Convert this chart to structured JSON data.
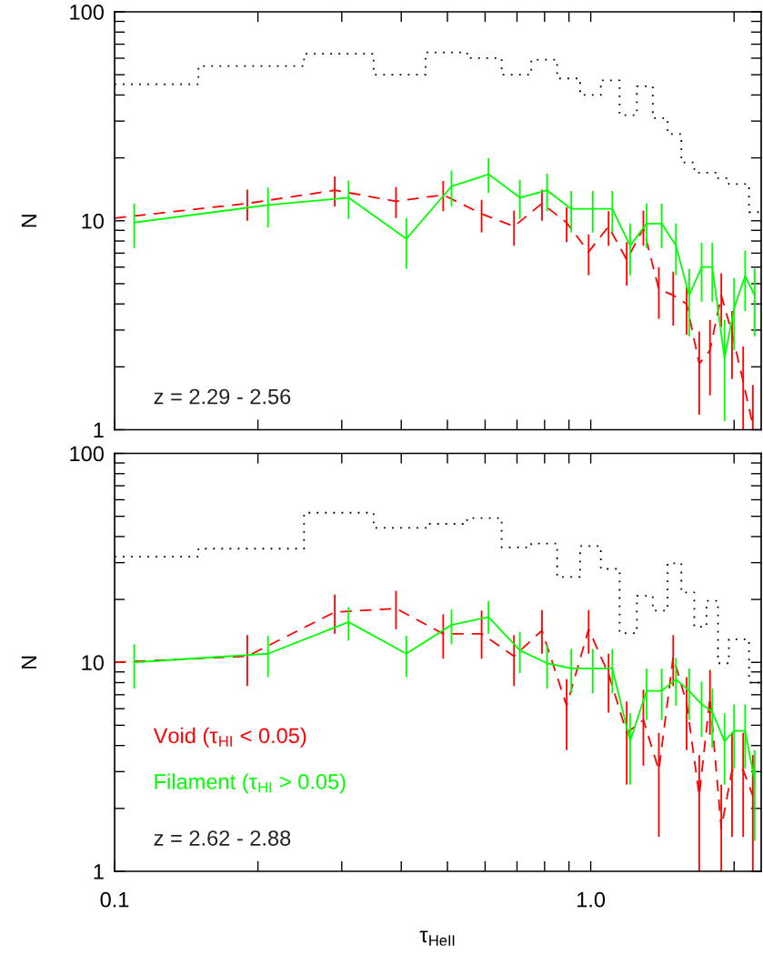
{
  "chart_data": [
    {
      "type": "line",
      "ylabel": "N",
      "log": "xy",
      "tick_labels": "y",
      "xlim": [
        0.1,
        2.28
      ],
      "ylim": [
        1,
        100
      ],
      "xticks": [
        {
          "value": 0.1,
          "label": null
        },
        {
          "value": 0.2,
          "label": null
        },
        {
          "value": 0.3,
          "label": null
        },
        {
          "value": 0.4,
          "label": null
        },
        {
          "value": 0.5,
          "label": null
        },
        {
          "value": 0.6,
          "label": null
        },
        {
          "value": 0.7,
          "label": null
        },
        {
          "value": 0.8,
          "label": null
        },
        {
          "value": 0.9,
          "label": null
        },
        {
          "value": 1,
          "label": null
        },
        {
          "value": 2,
          "label": null
        }
      ],
      "yticks": [
        1,
        {
          "value": 2,
          "label": null
        },
        {
          "value": 3,
          "label": null
        },
        {
          "value": 4,
          "label": null
        },
        {
          "value": 5,
          "label": null
        },
        {
          "value": 6,
          "label": null
        },
        {
          "value": 7,
          "label": null
        },
        {
          "value": 8,
          "label": null
        },
        {
          "value": 9,
          "label": null
        },
        10,
        {
          "value": 20,
          "label": null
        },
        {
          "value": 30,
          "label": null
        },
        {
          "value": 40,
          "label": null
        },
        {
          "value": 50,
          "label": null
        },
        {
          "value": 60,
          "label": null
        },
        {
          "value": 70,
          "label": null
        },
        {
          "value": 80,
          "label": null
        },
        {
          "value": 90,
          "label": null
        },
        100
      ],
      "annotations": [
        "z = 2.29 - 2.56"
      ],
      "series": [
        {
          "type": "step",
          "color": "#000000",
          "line_style": "dotted",
          "x": [
            0.1,
            0.15,
            0.25,
            0.35,
            0.45,
            0.55,
            0.65,
            0.75,
            0.85,
            0.95,
            1.05,
            1.15,
            1.25,
            1.35,
            1.45,
            1.55,
            1.65,
            1.75,
            1.85,
            1.95,
            2.05,
            2.15,
            2.28
          ],
          "values": [
            45,
            55,
            63,
            50,
            64,
            60,
            50,
            59,
            48,
            40,
            47,
            32,
            44,
            31,
            26,
            19,
            17,
            17,
            16,
            15,
            15,
            11,
            11
          ]
        },
        {
          "type": "line",
          "color": "#ff0000",
          "line_style": "dashed",
          "x": [
            0.1,
            0.19,
            0.29,
            0.39,
            0.49,
            0.59,
            0.69,
            0.79,
            0.89,
            0.99,
            1.09,
            1.19,
            1.29,
            1.39,
            1.49,
            1.59,
            1.69,
            1.78,
            1.88,
            1.98,
            2.09,
            2.19
          ],
          "values": [
            10.3,
            12.1,
            14.0,
            12.4,
            13.3,
            10.8,
            9.4,
            12.1,
            9.8,
            7.1,
            9.4,
            6.5,
            9.2,
            4.7,
            4.4,
            4.0,
            2.07,
            2.4,
            4.4,
            2.9,
            1.7,
            1.05
          ],
          "errors": [
            null,
            [
              10.0,
              14.1
            ],
            [
              11.7,
              16.3
            ],
            [
              10.3,
              14.5
            ],
            [
              11.1,
              15.5
            ],
            [
              8.8,
              12.6
            ],
            [
              7.6,
              11.2
            ],
            [
              10.0,
              14.1
            ],
            [
              7.9,
              11.6
            ],
            [
              5.5,
              8.6
            ],
            [
              7.6,
              11.1
            ],
            [
              4.9,
              7.9
            ],
            [
              7.6,
              11.2
            ],
            [
              3.4,
              6.0
            ],
            [
              3.15,
              5.7
            ],
            [
              2.85,
              4.8
            ],
            [
              1.18,
              2.95
            ],
            [
              1.46,
              3.35
            ],
            [
              3.1,
              5.6
            ],
            [
              1.75,
              3.7
            ],
            [
              1.0,
              2.5
            ],
            [
              1.0,
              1.64
            ]
          ]
        },
        {
          "type": "line",
          "color": "#00ff00",
          "line_style": "solid",
          "x": [
            0.11,
            0.21,
            0.31,
            0.41,
            0.51,
            0.61,
            0.71,
            0.81,
            0.91,
            1.01,
            1.11,
            1.21,
            1.31,
            1.41,
            1.51,
            1.61,
            1.71,
            1.8,
            1.91,
            2.0,
            2.11,
            2.21
          ],
          "values": [
            9.8,
            11.9,
            12.9,
            8.2,
            14.6,
            16.7,
            12.9,
            14.0,
            11.4,
            11.4,
            11.4,
            7.6,
            9.7,
            9.7,
            7.6,
            4.4,
            6.0,
            6.0,
            2.2,
            3.8,
            5.45,
            4.4
          ],
          "errors": [
            [
              7.4,
              12.1
            ],
            [
              9.3,
              14.4
            ],
            [
              10.2,
              15.6
            ],
            [
              5.9,
              10.3
            ],
            [
              11.7,
              17.4
            ],
            [
              13.6,
              19.9
            ],
            [
              10.2,
              15.7
            ],
            [
              11.1,
              16.8
            ],
            [
              8.8,
              13.9
            ],
            [
              8.8,
              13.9
            ],
            [
              8.8,
              13.9
            ],
            [
              5.5,
              9.7
            ],
            [
              7.4,
              12.1
            ],
            [
              7.4,
              12.1
            ],
            [
              5.5,
              9.7
            ],
            [
              2.8,
              5.9
            ],
            [
              4.1,
              7.85
            ],
            [
              4.1,
              7.85
            ],
            [
              1.1,
              3.35
            ],
            [
              2.4,
              5.3
            ],
            [
              3.7,
              7.2
            ],
            [
              2.8,
              5.9
            ]
          ]
        }
      ]
    },
    {
      "type": "line",
      "ylabel": "N",
      "xlabel": "τ$_{HeII}$",
      "log": "xy",
      "legend": "bottom left",
      "xlim": [
        0.1,
        2.28
      ],
      "ylim": [
        1,
        100
      ],
      "xticks": [
        {
          "value": 0.1,
          "label": "0.1"
        },
        {
          "value": 0.2,
          "label": null
        },
        {
          "value": 0.3,
          "label": null
        },
        {
          "value": 0.4,
          "label": null
        },
        {
          "value": 0.5,
          "label": null
        },
        {
          "value": 0.6,
          "label": null
        },
        {
          "value": 0.7,
          "label": null
        },
        {
          "value": 0.8,
          "label": null
        },
        {
          "value": 0.9,
          "label": null
        },
        {
          "value": 1,
          "label": "1.0"
        },
        {
          "value": 2,
          "label": null
        }
      ],
      "yticks": [
        1,
        {
          "value": 2,
          "label": null
        },
        {
          "value": 3,
          "label": null
        },
        {
          "value": 4,
          "label": null
        },
        {
          "value": 5,
          "label": null
        },
        {
          "value": 6,
          "label": null
        },
        {
          "value": 7,
          "label": null
        },
        {
          "value": 8,
          "label": null
        },
        {
          "value": 9,
          "label": null
        },
        10,
        {
          "value": 20,
          "label": null
        },
        {
          "value": 30,
          "label": null
        },
        {
          "value": 40,
          "label": null
        },
        {
          "value": 50,
          "label": null
        },
        {
          "value": 60,
          "label": null
        },
        {
          "value": 70,
          "label": null
        },
        {
          "value": 80,
          "label": null
        },
        {
          "value": 90,
          "label": null
        },
        100
      ],
      "annotations": [
        "z = 2.62 - 2.88"
      ],
      "series": [
        {
          "type": "step",
          "color": "#000000",
          "line_style": "dotted",
          "x": [
            0.1,
            0.15,
            0.25,
            0.35,
            0.45,
            0.55,
            0.65,
            0.75,
            0.85,
            0.95,
            1.05,
            1.15,
            1.25,
            1.35,
            1.45,
            1.55,
            1.65,
            1.75,
            1.85,
            1.95,
            2.05,
            2.15,
            2.28
          ],
          "values": [
            32,
            35,
            52,
            44,
            46,
            49,
            35.5,
            37,
            25.6,
            36,
            28,
            13.8,
            20.8,
            17.7,
            29.8,
            21.6,
            14.8,
            19.7,
            9.9,
            12.9,
            12.9,
            8.0,
            8.0
          ]
        },
        {
          "type": "line",
          "name": "Void (τ$_{HI}$ < 0.05)",
          "color": "#ff0000",
          "line_style": "dashed",
          "x": [
            0.1,
            0.19,
            0.29,
            0.39,
            0.49,
            0.59,
            0.69,
            0.79,
            0.89,
            0.99,
            1.09,
            1.19,
            1.29,
            1.39,
            1.49,
            1.59,
            1.69,
            1.78,
            1.88,
            1.98,
            2.09,
            2.19
          ],
          "values": [
            10.0,
            10.7,
            17.4,
            18.1,
            13.7,
            13.7,
            10.7,
            14.2,
            6.2,
            14.4,
            8.8,
            4.6,
            5.3,
            3.05,
            10.6,
            6.4,
            2.3,
            6.8,
            1.6,
            3.05,
            3.05,
            2.3
          ],
          "errors": [
            null,
            [
              7.7,
              13.5
            ],
            [
              13.7,
              21.1
            ],
            [
              14.4,
              22
            ],
            [
              10.4,
              17.0
            ],
            [
              10.4,
              17.7
            ],
            [
              7.7,
              13.5
            ],
            [
              11.0,
              17.8
            ],
            [
              3.8,
              8.3
            ],
            [
              11.0,
              17.8
            ],
            [
              5.75,
              11.0
            ],
            [
              2.6,
              6.5
            ],
            [
              3.2,
              7.4
            ],
            [
              1.46,
              4.6
            ],
            [
              7.7,
              13.5
            ],
            [
              3.8,
              8.5
            ],
            [
              1.0,
              3.6
            ],
            [
              4.5,
              9.2
            ],
            [
              1.0,
              2.6
            ],
            [
              1.46,
              4.6
            ],
            [
              1.46,
              4.6
            ],
            [
              1.0,
              3.6
            ]
          ]
        },
        {
          "type": "line",
          "name": "Filament (τ$_{HI}$ > 0.05)",
          "color": "#00ff00",
          "line_style": "solid",
          "x": [
            0.11,
            0.21,
            0.31,
            0.41,
            0.51,
            0.61,
            0.71,
            0.81,
            0.91,
            1.01,
            1.11,
            1.21,
            1.31,
            1.41,
            1.51,
            1.61,
            1.71,
            1.8,
            1.91,
            2.0,
            2.11,
            2.21
          ],
          "values": [
            10.0,
            11.0,
            15.6,
            11.0,
            15.1,
            16.5,
            11.4,
            9.9,
            9.35,
            9.35,
            9.35,
            4.2,
            7.3,
            7.3,
            8.3,
            7.3,
            6.3,
            5.8,
            4.2,
            4.7,
            4.7,
            2.7
          ],
          "errors": [
            [
              7.5,
              12.2
            ],
            [
              8.5,
              13.4
            ],
            [
              12.7,
              18.4
            ],
            [
              8.5,
              13.4
            ],
            [
              12.2,
              17.9
            ],
            [
              13.7,
              19.6
            ],
            [
              8.9,
              14.0
            ],
            [
              7.5,
              12.2
            ],
            [
              7.1,
              11.6
            ],
            [
              7.1,
              11.6
            ],
            [
              7.1,
              11.6
            ],
            [
              2.6,
              5.7
            ],
            [
              5.3,
              9.35
            ],
            [
              5.3,
              9.35
            ],
            [
              6.2,
              10.5
            ],
            [
              5.3,
              9.35
            ],
            [
              4.4,
              8.1
            ],
            [
              3.9,
              7.5
            ],
            [
              2.6,
              5.7
            ],
            [
              3.1,
              6.3
            ],
            [
              3.1,
              6.3
            ],
            [
              1.4,
              3.8
            ]
          ]
        }
      ]
    }
  ]
}
